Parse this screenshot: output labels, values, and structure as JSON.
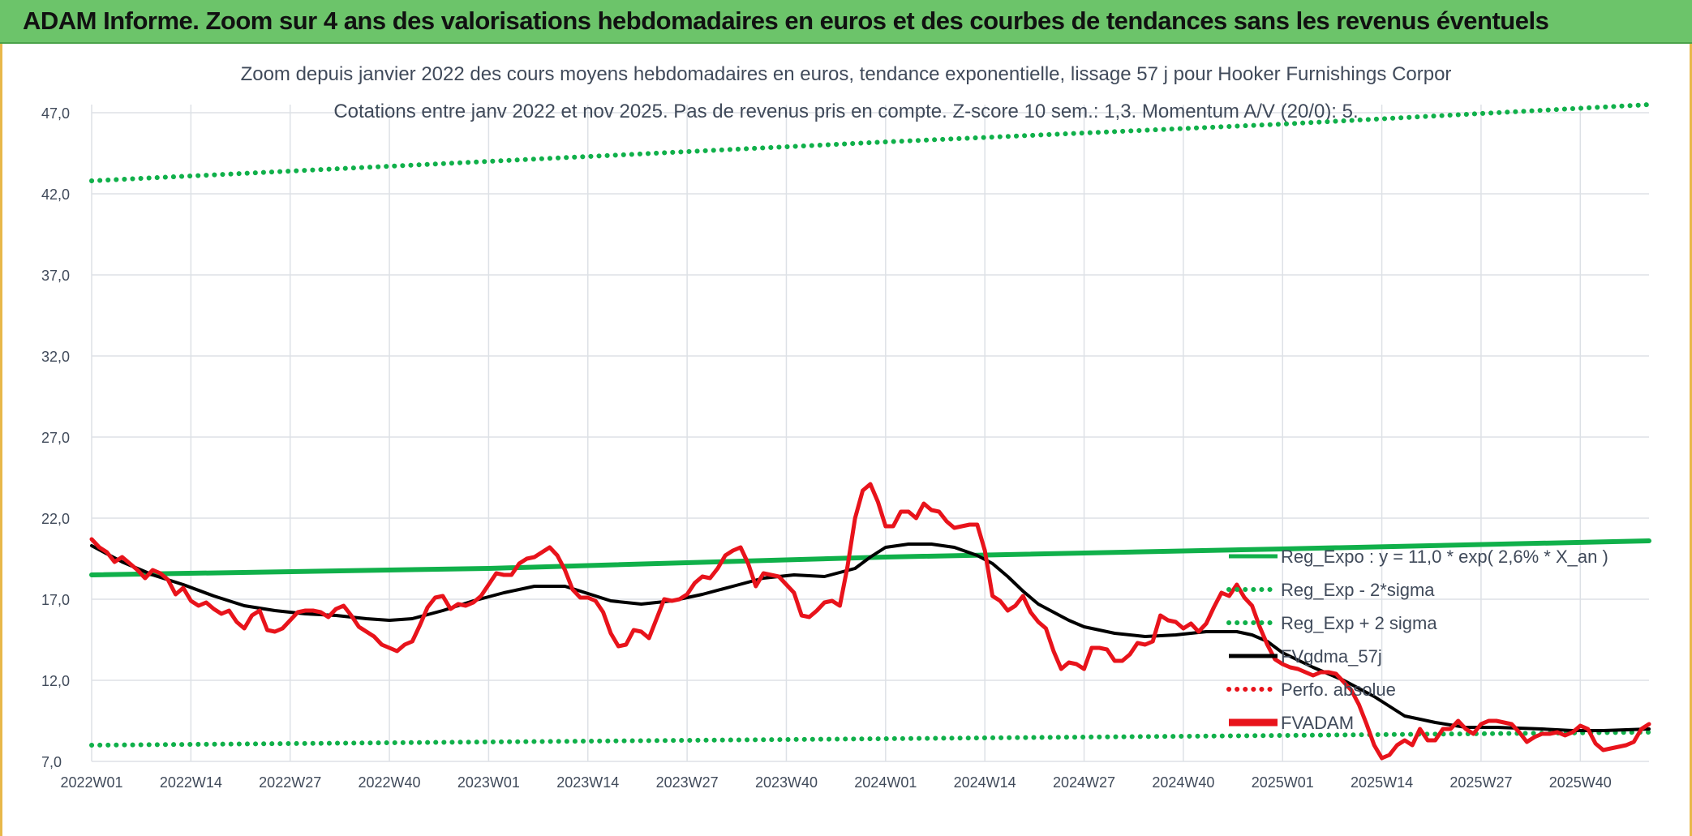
{
  "banner": {
    "title": "ADAM Informe. Zoom sur 4 ans des valorisations hebdomadaires en euros et des courbes de tendances sans les revenus éventuels"
  },
  "colors": {
    "banner_bg": "#6cc46a",
    "price": "#e8131b",
    "smooth": "#000000",
    "trend": "#10b04a",
    "perf": "#e8131b",
    "grid": "#dde1e6",
    "text": "#404a5a"
  },
  "chart_data": {
    "type": "line",
    "title_lines": [
      "Zoom depuis janvier 2022 des cours moyens hebdomadaires en euros, tendance exponentielle, lissage 57 j pour Hooker Furnishings Corpor",
      "Cotations entre janv 2022 et nov 2025. Pas de revenus pris en compte. Z-score 10 sem.: 1,3. Momentum A/V (20/0): 5."
    ],
    "y_ticks": [
      "7,0",
      "12,0",
      "17,0",
      "22,0",
      "27,0",
      "32,0",
      "37,0",
      "42,0",
      "47,0"
    ],
    "ylim": [
      7,
      47
    ],
    "x_ticks": [
      "2022W01",
      "2022W14",
      "2022W27",
      "2022W40",
      "2023W01",
      "2023W14",
      "2023W27",
      "2023W40",
      "2024W01",
      "2024W14",
      "2024W27",
      "2024W40",
      "2025W01",
      "2025W14",
      "2025W27",
      "2025W40"
    ],
    "x_tick_weeks": [
      0,
      13,
      26,
      39,
      52,
      65,
      78,
      91,
      104,
      117,
      130,
      143,
      156,
      169,
      182,
      195
    ],
    "x_range": [
      0,
      204
    ],
    "legend": [
      {
        "label": "Reg_Expo : y = 11,0 * exp( 2,6% * X_an )",
        "style": "solid",
        "color": "#10b04a"
      },
      {
        "label": "Reg_Exp - 2*sigma",
        "style": "dotted",
        "color": "#10b04a"
      },
      {
        "label": "Reg_Exp + 2 sigma",
        "style": "dotted",
        "color": "#10b04a"
      },
      {
        "label": "FVgdma_57j",
        "style": "solid",
        "color": "#000000"
      },
      {
        "label": "Perfo. absolue",
        "style": "dotted",
        "color": "#e8131b"
      },
      {
        "label": "FVADAM",
        "style": "solid-thick",
        "color": "#e8131b"
      }
    ],
    "series": [
      {
        "name": "Reg_Expo",
        "points": [
          [
            0,
            18.5
          ],
          [
            52,
            18.9
          ],
          [
            104,
            19.6
          ],
          [
            156,
            20.1
          ],
          [
            204,
            20.6
          ]
        ]
      },
      {
        "name": "Reg_Exp + 2 sigma",
        "points": [
          [
            0,
            42.8
          ],
          [
            52,
            44.0
          ],
          [
            104,
            45.2
          ],
          [
            156,
            46.3
          ],
          [
            204,
            47.5
          ]
        ]
      },
      {
        "name": "Reg_Exp - 2*sigma",
        "points": [
          [
            0,
            8.0
          ],
          [
            52,
            8.2
          ],
          [
            104,
            8.4
          ],
          [
            156,
            8.6
          ],
          [
            204,
            8.8
          ]
        ]
      },
      {
        "name": "FVgdma_57j",
        "points": [
          [
            0,
            20.3
          ],
          [
            4,
            19.3
          ],
          [
            8,
            18.5
          ],
          [
            12,
            17.9
          ],
          [
            16,
            17.2
          ],
          [
            20,
            16.6
          ],
          [
            24,
            16.3
          ],
          [
            28,
            16.1
          ],
          [
            32,
            16.0
          ],
          [
            36,
            15.8
          ],
          [
            39,
            15.7
          ],
          [
            42,
            15.8
          ],
          [
            46,
            16.3
          ],
          [
            50,
            16.9
          ],
          [
            54,
            17.4
          ],
          [
            58,
            17.8
          ],
          [
            62,
            17.8
          ],
          [
            64,
            17.5
          ],
          [
            68,
            16.9
          ],
          [
            72,
            16.7
          ],
          [
            76,
            16.9
          ],
          [
            80,
            17.3
          ],
          [
            84,
            17.8
          ],
          [
            88,
            18.3
          ],
          [
            92,
            18.5
          ],
          [
            96,
            18.4
          ],
          [
            100,
            18.9
          ],
          [
            102,
            19.6
          ],
          [
            104,
            20.2
          ],
          [
            107,
            20.4
          ],
          [
            110,
            20.4
          ],
          [
            113,
            20.2
          ],
          [
            116,
            19.7
          ],
          [
            118,
            19.2
          ],
          [
            120,
            18.4
          ],
          [
            122,
            17.5
          ],
          [
            124,
            16.7
          ],
          [
            126,
            16.2
          ],
          [
            128,
            15.7
          ],
          [
            130,
            15.3
          ],
          [
            134,
            14.9
          ],
          [
            138,
            14.7
          ],
          [
            142,
            14.8
          ],
          [
            146,
            15.0
          ],
          [
            150,
            15.0
          ],
          [
            152,
            14.8
          ],
          [
            154,
            14.4
          ],
          [
            156,
            13.7
          ],
          [
            160,
            12.8
          ],
          [
            164,
            12.0
          ],
          [
            168,
            11.0
          ],
          [
            170,
            10.4
          ],
          [
            172,
            9.8
          ],
          [
            176,
            9.4
          ],
          [
            180,
            9.1
          ],
          [
            184,
            9.1
          ],
          [
            190,
            9.0
          ],
          [
            194,
            8.9
          ],
          [
            198,
            8.9
          ],
          [
            204,
            9.0
          ]
        ]
      },
      {
        "name": "FVADAM",
        "points": [
          [
            0,
            20.7
          ],
          [
            1,
            20.2
          ],
          [
            2,
            19.9
          ],
          [
            3,
            19.3
          ],
          [
            4,
            19.6
          ],
          [
            5,
            19.2
          ],
          [
            6,
            18.8
          ],
          [
            7,
            18.3
          ],
          [
            8,
            18.8
          ],
          [
            9,
            18.6
          ],
          [
            10,
            18.2
          ],
          [
            11,
            17.3
          ],
          [
            12,
            17.7
          ],
          [
            13,
            16.9
          ],
          [
            14,
            16.6
          ],
          [
            15,
            16.8
          ],
          [
            16,
            16.4
          ],
          [
            17,
            16.1
          ],
          [
            18,
            16.3
          ],
          [
            19,
            15.6
          ],
          [
            20,
            15.2
          ],
          [
            21,
            16.0
          ],
          [
            22,
            16.3
          ],
          [
            23,
            15.1
          ],
          [
            24,
            15.0
          ],
          [
            25,
            15.2
          ],
          [
            26,
            15.7
          ],
          [
            27,
            16.2
          ],
          [
            28,
            16.3
          ],
          [
            29,
            16.3
          ],
          [
            30,
            16.2
          ],
          [
            31,
            15.9
          ],
          [
            32,
            16.4
          ],
          [
            33,
            16.6
          ],
          [
            34,
            16.0
          ],
          [
            35,
            15.3
          ],
          [
            36,
            15.0
          ],
          [
            37,
            14.7
          ],
          [
            38,
            14.2
          ],
          [
            39,
            14.0
          ],
          [
            40,
            13.8
          ],
          [
            41,
            14.2
          ],
          [
            42,
            14.4
          ],
          [
            43,
            15.4
          ],
          [
            44,
            16.5
          ],
          [
            45,
            17.1
          ],
          [
            46,
            17.2
          ],
          [
            47,
            16.4
          ],
          [
            48,
            16.7
          ],
          [
            49,
            16.6
          ],
          [
            50,
            16.8
          ],
          [
            51,
            17.2
          ],
          [
            52,
            17.9
          ],
          [
            53,
            18.6
          ],
          [
            54,
            18.5
          ],
          [
            55,
            18.5
          ],
          [
            56,
            19.2
          ],
          [
            57,
            19.5
          ],
          [
            58,
            19.6
          ],
          [
            59,
            19.9
          ],
          [
            60,
            20.2
          ],
          [
            61,
            19.7
          ],
          [
            62,
            18.8
          ],
          [
            63,
            17.6
          ],
          [
            64,
            17.1
          ],
          [
            65,
            17.1
          ],
          [
            66,
            16.9
          ],
          [
            67,
            16.2
          ],
          [
            68,
            14.9
          ],
          [
            69,
            14.1
          ],
          [
            70,
            14.2
          ],
          [
            71,
            15.1
          ],
          [
            72,
            15.0
          ],
          [
            73,
            14.6
          ],
          [
            74,
            15.8
          ],
          [
            75,
            17.0
          ],
          [
            76,
            16.9
          ],
          [
            77,
            17.0
          ],
          [
            78,
            17.3
          ],
          [
            79,
            18.0
          ],
          [
            80,
            18.4
          ],
          [
            81,
            18.3
          ],
          [
            82,
            18.9
          ],
          [
            83,
            19.7
          ],
          [
            84,
            20.0
          ],
          [
            85,
            20.2
          ],
          [
            86,
            19.2
          ],
          [
            87,
            17.8
          ],
          [
            88,
            18.6
          ],
          [
            89,
            18.5
          ],
          [
            90,
            18.4
          ],
          [
            91,
            17.9
          ],
          [
            92,
            17.4
          ],
          [
            93,
            16.0
          ],
          [
            94,
            15.9
          ],
          [
            95,
            16.3
          ],
          [
            96,
            16.8
          ],
          [
            97,
            16.9
          ],
          [
            98,
            16.6
          ],
          [
            99,
            19.0
          ],
          [
            100,
            22.0
          ],
          [
            101,
            23.7
          ],
          [
            102,
            24.1
          ],
          [
            103,
            23.0
          ],
          [
            104,
            21.5
          ],
          [
            105,
            21.5
          ],
          [
            106,
            22.4
          ],
          [
            107,
            22.4
          ],
          [
            108,
            22.0
          ],
          [
            109,
            22.9
          ],
          [
            110,
            22.5
          ],
          [
            111,
            22.4
          ],
          [
            112,
            21.8
          ],
          [
            113,
            21.4
          ],
          [
            114,
            21.5
          ],
          [
            115,
            21.6
          ],
          [
            116,
            21.6
          ],
          [
            117,
            20.0
          ],
          [
            118,
            17.2
          ],
          [
            119,
            16.9
          ],
          [
            120,
            16.3
          ],
          [
            121,
            16.6
          ],
          [
            122,
            17.2
          ],
          [
            123,
            16.2
          ],
          [
            124,
            15.6
          ],
          [
            125,
            15.2
          ],
          [
            126,
            13.8
          ],
          [
            127,
            12.7
          ],
          [
            128,
            13.1
          ],
          [
            129,
            13.0
          ],
          [
            130,
            12.7
          ],
          [
            131,
            14.0
          ],
          [
            132,
            14.0
          ],
          [
            133,
            13.9
          ],
          [
            134,
            13.2
          ],
          [
            135,
            13.2
          ],
          [
            136,
            13.6
          ],
          [
            137,
            14.3
          ],
          [
            138,
            14.2
          ],
          [
            139,
            14.4
          ],
          [
            140,
            16.0
          ],
          [
            141,
            15.7
          ],
          [
            142,
            15.6
          ],
          [
            143,
            15.2
          ],
          [
            144,
            15.5
          ],
          [
            145,
            15.0
          ],
          [
            146,
            15.5
          ],
          [
            147,
            16.5
          ],
          [
            148,
            17.4
          ],
          [
            149,
            17.2
          ],
          [
            150,
            17.9
          ],
          [
            151,
            17.1
          ],
          [
            152,
            16.6
          ],
          [
            153,
            15.3
          ],
          [
            154,
            14.2
          ],
          [
            155,
            13.3
          ],
          [
            156,
            13.0
          ],
          [
            157,
            12.8
          ],
          [
            158,
            12.7
          ],
          [
            159,
            12.5
          ],
          [
            160,
            12.3
          ],
          [
            161,
            12.5
          ],
          [
            162,
            12.5
          ],
          [
            163,
            12.4
          ],
          [
            164,
            11.9
          ],
          [
            165,
            11.4
          ],
          [
            166,
            10.5
          ],
          [
            167,
            9.3
          ],
          [
            168,
            8.0
          ],
          [
            169,
            7.2
          ],
          [
            170,
            7.4
          ],
          [
            171,
            8.0
          ],
          [
            172,
            8.3
          ],
          [
            173,
            8.0
          ],
          [
            174,
            9.0
          ],
          [
            175,
            8.3
          ],
          [
            176,
            8.3
          ],
          [
            177,
            9.0
          ],
          [
            178,
            9.0
          ],
          [
            179,
            9.5
          ],
          [
            180,
            9.0
          ],
          [
            181,
            8.7
          ],
          [
            182,
            9.3
          ],
          [
            183,
            9.5
          ],
          [
            184,
            9.5
          ],
          [
            185,
            9.4
          ],
          [
            186,
            9.3
          ],
          [
            187,
            8.8
          ],
          [
            188,
            8.2
          ],
          [
            189,
            8.5
          ],
          [
            190,
            8.7
          ],
          [
            191,
            8.7
          ],
          [
            192,
            8.8
          ],
          [
            193,
            8.6
          ],
          [
            194,
            8.8
          ],
          [
            195,
            9.2
          ],
          [
            196,
            9.0
          ],
          [
            197,
            8.1
          ],
          [
            198,
            7.7
          ],
          [
            199,
            7.8
          ],
          [
            200,
            7.9
          ],
          [
            201,
            8.0
          ],
          [
            202,
            8.2
          ],
          [
            203,
            9.0
          ],
          [
            204,
            9.3
          ]
        ]
      }
    ]
  }
}
